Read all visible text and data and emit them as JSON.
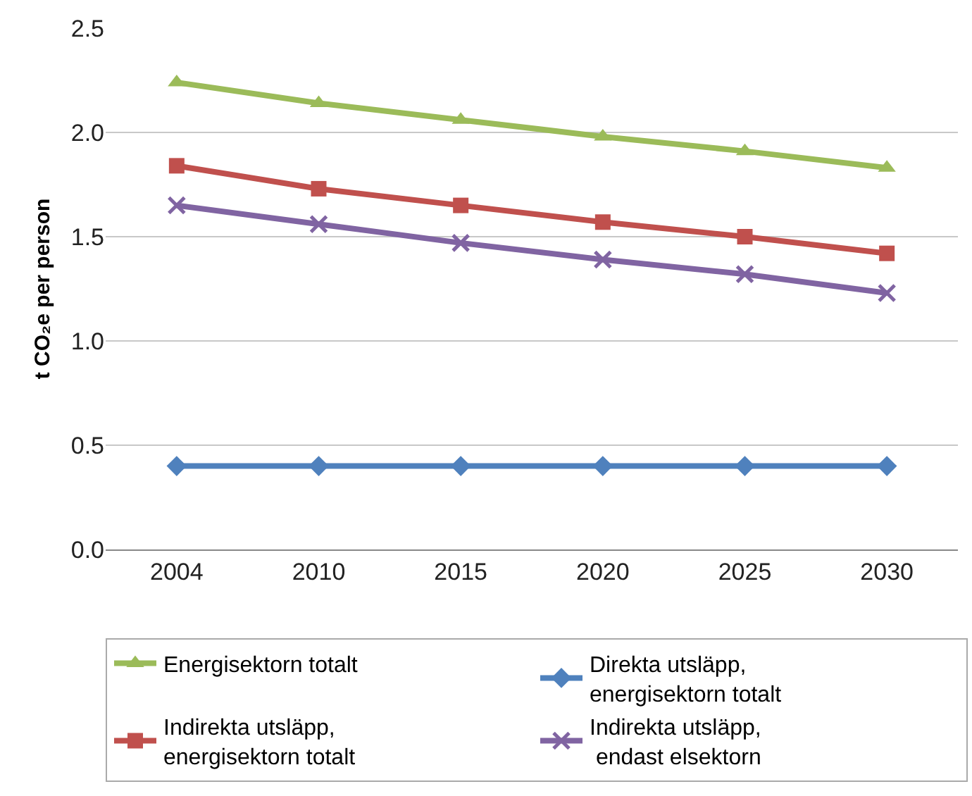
{
  "chart_data": {
    "type": "line",
    "ylabel": "t CO₂e per person",
    "categories": [
      "2004",
      "2010",
      "2015",
      "2020",
      "2025",
      "2030"
    ],
    "series": [
      {
        "name": "Energisektorn totalt",
        "color": "#9bbb59",
        "marker": "triangle",
        "values": [
          2.24,
          2.14,
          2.06,
          1.98,
          1.91,
          1.83
        ]
      },
      {
        "name": "Direkta utsläpp,\nenergisektorn totalt",
        "color": "#4f81bd",
        "marker": "diamond",
        "values": [
          0.4,
          0.4,
          0.4,
          0.4,
          0.4,
          0.4
        ]
      },
      {
        "name": "Indirekta utsläpp,\nenergisektorn totalt",
        "color": "#c0504d",
        "marker": "square",
        "values": [
          1.84,
          1.73,
          1.65,
          1.57,
          1.5,
          1.42
        ]
      },
      {
        "name": "Indirekta utsläpp,\n endast elsektorn",
        "color": "#8064a2",
        "marker": "cross",
        "values": [
          1.65,
          1.56,
          1.47,
          1.39,
          1.32,
          1.23
        ]
      }
    ],
    "ylim": [
      0,
      2.5
    ],
    "yticks": [
      {
        "value": 0,
        "label": "0.0"
      },
      0.5,
      {
        "value": 1,
        "label": "1.0"
      },
      1.5,
      {
        "value": 2,
        "label": "2.0"
      },
      2.5
    ],
    "grid": "y",
    "legend": "bottom"
  }
}
